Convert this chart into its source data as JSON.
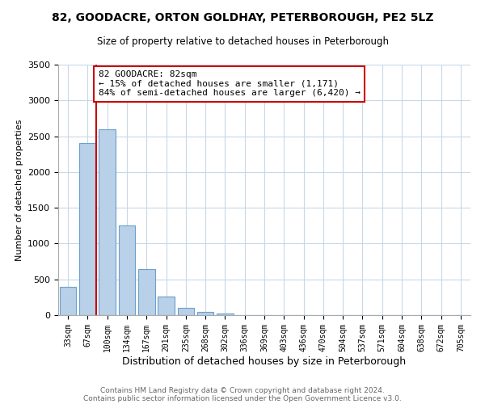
{
  "title": "82, GOODACRE, ORTON GOLDHAY, PETERBOROUGH, PE2 5LZ",
  "subtitle": "Size of property relative to detached houses in Peterborough",
  "xlabel": "Distribution of detached houses by size in Peterborough",
  "ylabel": "Number of detached properties",
  "categories": [
    "33sqm",
    "67sqm",
    "100sqm",
    "134sqm",
    "167sqm",
    "201sqm",
    "235sqm",
    "268sqm",
    "302sqm",
    "336sqm",
    "369sqm",
    "403sqm",
    "436sqm",
    "470sqm",
    "504sqm",
    "537sqm",
    "571sqm",
    "604sqm",
    "638sqm",
    "672sqm",
    "705sqm"
  ],
  "values": [
    400,
    2400,
    2600,
    1250,
    640,
    260,
    100,
    50,
    20,
    5,
    2,
    1,
    0,
    0,
    0,
    0,
    0,
    0,
    0,
    0,
    0
  ],
  "bar_color": "#b8d0e8",
  "bar_edge_color": "#6aa0cc",
  "marker_line_color": "#cc0000",
  "annotation_text_line1": "82 GOODACRE: 82sqm",
  "annotation_text_line2": "← 15% of detached houses are smaller (1,171)",
  "annotation_text_line3": "84% of semi-detached houses are larger (6,420) →",
  "annotation_box_color": "#ffffff",
  "annotation_box_edge": "#cc0000",
  "ylim": [
    0,
    3500
  ],
  "yticks": [
    0,
    500,
    1000,
    1500,
    2000,
    2500,
    3000,
    3500
  ],
  "footer_line1": "Contains HM Land Registry data © Crown copyright and database right 2024.",
  "footer_line2": "Contains public sector information licensed under the Open Government Licence v3.0.",
  "bg_color": "#ffffff",
  "grid_color": "#c8d8e8"
}
